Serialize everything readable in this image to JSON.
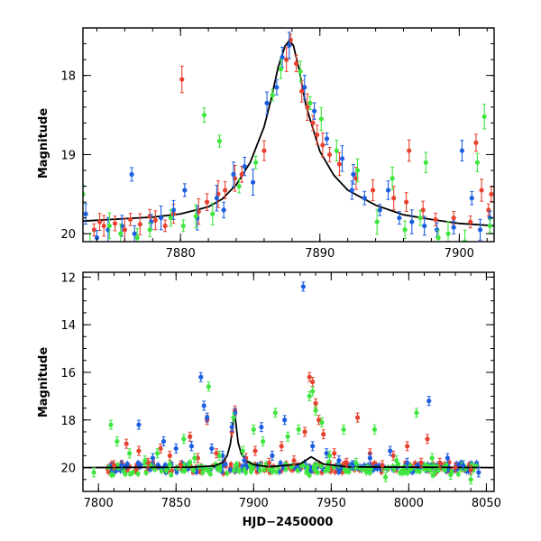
{
  "chart_data": [
    {
      "id": "top",
      "type": "scatter",
      "title": "",
      "xlabel": "",
      "ylabel": "Magnitude",
      "xlim": [
        7873,
        7902.5
      ],
      "ylim": [
        20.1,
        17.4
      ],
      "y_inverted": true,
      "x_ticks": [
        7880,
        7890,
        7900
      ],
      "y_ticks": [
        18,
        19,
        20
      ],
      "x_minor_step": 2,
      "y_minor_step": 0.2,
      "grid": false,
      "model_curve": {
        "x": [
          7873,
          7876,
          7878,
          7880,
          7882,
          7883,
          7884,
          7885,
          7886,
          7886.5,
          7887,
          7887.5,
          7887.8,
          7888.1,
          7888.5,
          7889,
          7890,
          7891,
          7892,
          7894,
          7896,
          7898,
          7900,
          7902.5
        ],
        "y": [
          19.84,
          19.81,
          19.79,
          19.75,
          19.66,
          19.56,
          19.38,
          19.1,
          18.65,
          18.3,
          17.9,
          17.63,
          17.56,
          17.62,
          17.92,
          18.38,
          18.96,
          19.26,
          19.45,
          19.64,
          19.76,
          19.82,
          19.87,
          19.9
        ]
      },
      "series": [
        {
          "color": "#e8412f",
          "points": [
            [
              7873.8,
              19.95
            ],
            [
              7874.2,
              19.85
            ],
            [
              7874.5,
              19.9
            ],
            [
              7875.3,
              19.87
            ],
            [
              7876,
              19.95
            ],
            [
              7876.4,
              19.82
            ],
            [
              7877.1,
              19.88
            ],
            [
              7877.8,
              19.78
            ],
            [
              7878.2,
              19.83
            ],
            [
              7878.9,
              19.9
            ],
            [
              7879.5,
              19.75
            ],
            [
              7880.1,
              18.05
            ],
            [
              7881.3,
              19.72
            ],
            [
              7881.9,
              19.6
            ],
            [
              7882.7,
              19.5
            ],
            [
              7883.2,
              19.45
            ],
            [
              7883.9,
              19.3
            ],
            [
              7884.4,
              19.25
            ],
            [
              7886,
              18.95
            ],
            [
              7887.6,
              17.8
            ],
            [
              7887.9,
              17.55
            ],
            [
              7888.3,
              17.85
            ],
            [
              7888.7,
              18.2
            ],
            [
              7889.1,
              18.4
            ],
            [
              7889.5,
              18.6
            ],
            [
              7889.8,
              18.75
            ],
            [
              7890.2,
              18.88
            ],
            [
              7890.7,
              19.0
            ],
            [
              7891.4,
              19.12
            ],
            [
              7892.6,
              19.3
            ],
            [
              7893.8,
              19.45
            ],
            [
              7895.3,
              19.55
            ],
            [
              7896.2,
              19.6
            ],
            [
              7896.4,
              18.95
            ],
            [
              7897.4,
              19.7
            ],
            [
              7898.3,
              19.82
            ],
            [
              7899.6,
              19.8
            ],
            [
              7900.8,
              19.85
            ],
            [
              7901.2,
              18.85
            ],
            [
              7901.6,
              19.45
            ],
            [
              7902.1,
              19.7
            ],
            [
              7902.3,
              19.5
            ]
          ]
        },
        {
          "color": "#1c5ee0",
          "points": [
            [
              7873.2,
              19.75
            ],
            [
              7874,
              20.05
            ],
            [
              7874.8,
              19.95
            ],
            [
              7875.8,
              19.9
            ],
            [
              7876.7,
              20.0
            ],
            [
              7876.5,
              19.25
            ],
            [
              7877.9,
              19.85
            ],
            [
              7878.6,
              19.8
            ],
            [
              7879.5,
              19.7
            ],
            [
              7880.3,
              19.45
            ],
            [
              7881.2,
              19.8
            ],
            [
              7882.6,
              19.55
            ],
            [
              7883.1,
              19.7
            ],
            [
              7883.8,
              19.25
            ],
            [
              7884.6,
              19.15
            ],
            [
              7885.2,
              19.35
            ],
            [
              7886.2,
              18.35
            ],
            [
              7886.9,
              18.15
            ],
            [
              7887.3,
              17.77
            ],
            [
              7888.9,
              18.15
            ],
            [
              7889.6,
              18.45
            ],
            [
              7890.5,
              18.8
            ],
            [
              7891.6,
              19.05
            ],
            [
              7892.3,
              19.45
            ],
            [
              7893.2,
              19.55
            ],
            [
              7894.3,
              19.7
            ],
            [
              7894.9,
              19.45
            ],
            [
              7895.7,
              19.8
            ],
            [
              7896.6,
              19.85
            ],
            [
              7897.5,
              19.9
            ],
            [
              7898.4,
              19.95
            ],
            [
              7899.6,
              19.92
            ],
            [
              7900.2,
              18.95
            ],
            [
              7900.9,
              19.55
            ],
            [
              7901.5,
              19.95
            ],
            [
              7902.2,
              19.8
            ],
            [
              7892.4,
              19.25
            ],
            [
              7887.8,
              17.62
            ]
          ]
        },
        {
          "color": "#3ee63e",
          "points": [
            [
              7873,
              19.5
            ],
            [
              7873.5,
              20.15
            ],
            [
              7874.9,
              19.9
            ],
            [
              7875.7,
              20.0
            ],
            [
              7876.9,
              20.05
            ],
            [
              7877.8,
              19.95
            ],
            [
              7879.3,
              19.8
            ],
            [
              7880.2,
              19.9
            ],
            [
              7881.1,
              19.78
            ],
            [
              7881.7,
              18.5
            ],
            [
              7882.3,
              19.75
            ],
            [
              7882.8,
              18.83
            ],
            [
              7884.2,
              19.4
            ],
            [
              7885.4,
              19.1
            ],
            [
              7886.6,
              18.25
            ],
            [
              7887.2,
              17.92
            ],
            [
              7888.6,
              17.95
            ],
            [
              7889.3,
              18.35
            ],
            [
              7890.1,
              18.55
            ],
            [
              7891.2,
              18.95
            ],
            [
              7892.7,
              19.2
            ],
            [
              7894.1,
              19.85
            ],
            [
              7895.2,
              19.3
            ],
            [
              7896.1,
              19.95
            ],
            [
              7897.2,
              19.8
            ],
            [
              7897.6,
              19.1
            ],
            [
              7898.5,
              20.05
            ],
            [
              7899.2,
              20.0
            ],
            [
              7900.4,
              20.1
            ],
            [
              7901.3,
              19.1
            ],
            [
              7901.8,
              18.52
            ],
            [
              7902.2,
              19.9
            ]
          ]
        }
      ]
    },
    {
      "id": "bottom",
      "type": "scatter",
      "title": "",
      "xlabel": "HJD−2450000",
      "ylabel": "Magnitude",
      "xlim": [
        7790,
        8055
      ],
      "ylim": [
        21,
        11.8
      ],
      "y_inverted": true,
      "x_ticks": [
        7800,
        7850,
        7900,
        7950,
        8000,
        8050
      ],
      "y_ticks": [
        12,
        14,
        16,
        18,
        20
      ],
      "x_minor_step": 10,
      "y_minor_step": 0.5,
      "grid": false,
      "baseline": 20.0,
      "model_curve": {
        "x": [
          7790,
          7860,
          7875,
          7880,
          7883,
          7885,
          7886.5,
          7887.5,
          7888.5,
          7890,
          7892,
          7895,
          7900,
          7910,
          7930,
          7937,
          7945,
          7960,
          8055
        ],
        "y": [
          20.0,
          19.98,
          19.93,
          19.78,
          19.5,
          19.0,
          18.3,
          17.6,
          18.1,
          18.95,
          19.4,
          19.7,
          19.88,
          19.97,
          19.85,
          19.55,
          19.85,
          19.97,
          20.0
        ]
      },
      "series": [
        {
          "color": "#e8412f",
          "points": [
            [
              7810,
              19.9
            ],
            [
              7818,
              19.0
            ],
            [
              7826,
              19.3
            ],
            [
              7832,
              19.8
            ],
            [
              7840,
              19.2
            ],
            [
              7846,
              19.5
            ],
            [
              7853,
              19.9
            ],
            [
              7859,
              18.7
            ],
            [
              7864,
              19.6
            ],
            [
              7870,
              18.0
            ],
            [
              7876,
              19.4
            ],
            [
              7886,
              18.5
            ],
            [
              7888,
              17.6
            ],
            [
              7895,
              19.6
            ],
            [
              7901,
              19.3
            ],
            [
              7910,
              19.8
            ],
            [
              7918,
              19.1
            ],
            [
              7926,
              19.7
            ],
            [
              7933,
              18.5
            ],
            [
              7936,
              16.2
            ],
            [
              7938,
              16.4
            ],
            [
              7940,
              17.3
            ],
            [
              7942,
              18.0
            ],
            [
              7945,
              18.6
            ],
            [
              7952,
              19.4
            ],
            [
              7960,
              19.8
            ],
            [
              7967,
              17.9
            ],
            [
              7975,
              19.4
            ],
            [
              7983,
              19.9
            ],
            [
              7990,
              19.5
            ],
            [
              7999,
              19.1
            ],
            [
              8008,
              19.8
            ],
            [
              8012,
              18.8
            ],
            [
              8020,
              19.8
            ],
            [
              8030,
              20.0
            ],
            [
              8040,
              20.1
            ]
          ]
        },
        {
          "color": "#1c5ee0",
          "points": [
            [
              7815,
              19.9
            ],
            [
              7826,
              18.2
            ],
            [
              7835,
              19.6
            ],
            [
              7842,
              18.9
            ],
            [
              7850,
              19.2
            ],
            [
              7860,
              19.1
            ],
            [
              7866,
              16.2
            ],
            [
              7868,
              17.4
            ],
            [
              7870,
              17.9
            ],
            [
              7873,
              19.2
            ],
            [
              7880,
              19.5
            ],
            [
              7886,
              18.3
            ],
            [
              7888,
              17.7
            ],
            [
              7894,
              19.7
            ],
            [
              7905,
              18.3
            ],
            [
              7912,
              19.5
            ],
            [
              7920,
              18.0
            ],
            [
              7932,
              12.4
            ],
            [
              7938,
              19.1
            ],
            [
              7947,
              19.4
            ],
            [
              7955,
              19.7
            ],
            [
              7964,
              19.9
            ],
            [
              7975,
              19.6
            ],
            [
              7988,
              19.3
            ],
            [
              7999,
              19.8
            ],
            [
              8013,
              17.2
            ],
            [
              8025,
              19.6
            ],
            [
              8035,
              19.9
            ],
            [
              8045,
              20.2
            ]
          ]
        },
        {
          "color": "#3ee63e",
          "points": [
            [
              7797,
              20.2
            ],
            [
              7808,
              18.2
            ],
            [
              7812,
              18.9
            ],
            [
              7820,
              19.4
            ],
            [
              7830,
              19.7
            ],
            [
              7838,
              19.4
            ],
            [
              7846,
              19.9
            ],
            [
              7855,
              18.8
            ],
            [
              7862,
              19.6
            ],
            [
              7871,
              16.6
            ],
            [
              7878,
              19.5
            ],
            [
              7887,
              17.9
            ],
            [
              7893,
              19.3
            ],
            [
              7900,
              18.4
            ],
            [
              7906,
              18.9
            ],
            [
              7914,
              17.7
            ],
            [
              7922,
              18.7
            ],
            [
              7929,
              18.4
            ],
            [
              7936,
              17.0
            ],
            [
              7938,
              16.8
            ],
            [
              7940,
              17.6
            ],
            [
              7944,
              18.1
            ],
            [
              7949,
              19.5
            ],
            [
              7958,
              18.4
            ],
            [
              7966,
              19.8
            ],
            [
              7978,
              18.4
            ],
            [
              7985,
              20.4
            ],
            [
              7992,
              19.7
            ],
            [
              8005,
              17.7
            ],
            [
              8015,
              19.6
            ],
            [
              8027,
              20.3
            ],
            [
              8040,
              20.5
            ]
          ]
        }
      ],
      "bands": [
        {
          "color": "#e8412f",
          "x_from": 7806,
          "x_to": 8045,
          "y_center": 20.0,
          "spread": 0.25
        },
        {
          "color": "#1c5ee0",
          "x_from": 7806,
          "x_to": 8045,
          "y_center": 20.0,
          "spread": 0.22
        },
        {
          "color": "#3ee63e",
          "x_from": 7806,
          "x_to": 8045,
          "y_center": 20.05,
          "spread": 0.3
        }
      ]
    }
  ]
}
